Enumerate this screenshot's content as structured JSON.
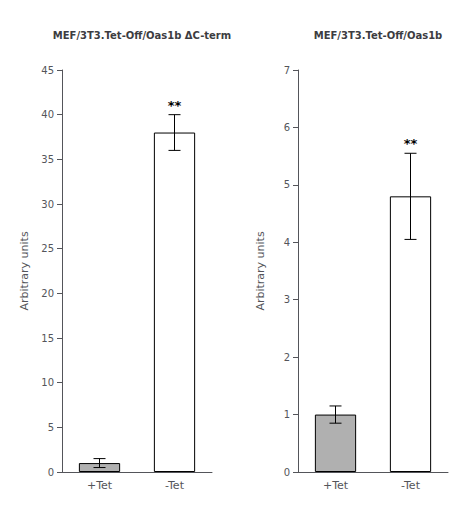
{
  "chart_data": [
    {
      "type": "bar",
      "title": "MEF/3T3.Tet-Off/Oas1b ΔC-term",
      "categories": [
        "+Tet",
        "-Tet"
      ],
      "values": [
        1.0,
        38.0
      ],
      "errors": [
        0.5,
        2.0
      ],
      "colors": [
        "#b0b0b0",
        "#ffffff"
      ],
      "ylabel": "Arbitrary units",
      "ylim": [
        0,
        45
      ],
      "yticks": [
        0,
        5,
        10,
        15,
        20,
        25,
        30,
        35,
        40,
        45
      ],
      "grid": false,
      "annotations": [
        {
          "category": "-Tet",
          "text": "**"
        }
      ]
    },
    {
      "type": "bar",
      "title": "MEF/3T3.Tet-Off/Oas1b",
      "categories": [
        "+Tet",
        "-Tet"
      ],
      "values": [
        1.0,
        4.8
      ],
      "errors": [
        0.15,
        0.75
      ],
      "colors": [
        "#b0b0b0",
        "#ffffff"
      ],
      "ylabel": "Arbitrary units",
      "ylim": [
        0,
        7
      ],
      "yticks": [
        0,
        1,
        2,
        3,
        4,
        5,
        6,
        7
      ],
      "grid": false,
      "annotations": [
        {
          "category": "-Tet",
          "text": "**"
        }
      ]
    }
  ]
}
